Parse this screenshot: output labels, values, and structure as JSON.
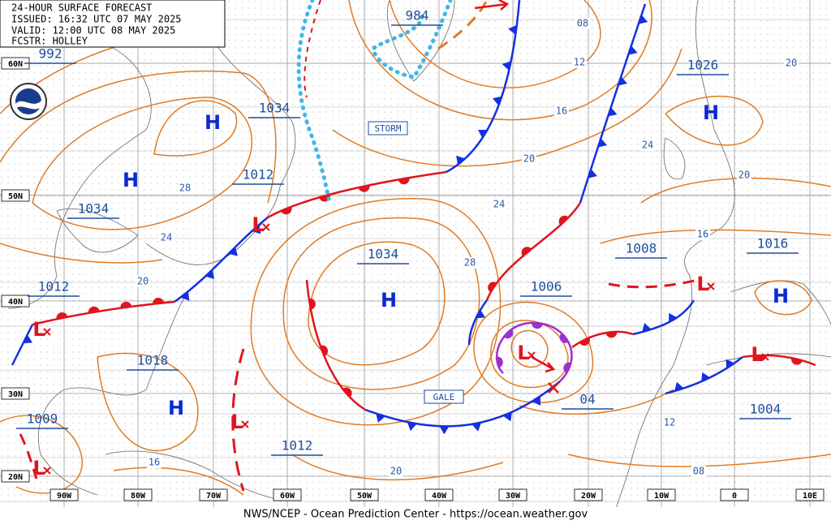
{
  "header": {
    "lines": [
      "24-HOUR SURFACE FORECAST",
      "ISSUED: 16:32 UTC 07 MAY 2025",
      "VALID: 12:00 UTC 08 MAY 2025",
      "FCSTR: HOLLEY"
    ]
  },
  "footer": "NWS/NCEP - Ocean Prediction Center - https://ocean.weather.gov",
  "latitude_labels": [
    "60N",
    "50N",
    "40N",
    "30N",
    "20N"
  ],
  "longitude_labels": [
    "90W",
    "80W",
    "70W",
    "60W",
    "50W",
    "40W",
    "30W",
    "20W",
    "10W",
    "0",
    "10E"
  ],
  "pressure_labels": [
    "992",
    "984",
    "1034",
    "1026",
    "1012",
    "1034",
    "1034",
    "1008",
    "1016",
    "1012",
    "1006",
    "1018",
    "04",
    "1009",
    "1004",
    "1012"
  ],
  "isobar_labels": [
    "08",
    "12",
    "16",
    "20",
    "24",
    "28",
    "20",
    "24",
    "20",
    "16",
    "28",
    "24",
    "20",
    "16",
    "20",
    "12",
    "08"
  ],
  "highs": [
    "H",
    "H",
    "H",
    "H",
    "H",
    "H"
  ],
  "lows": [
    "L",
    "L",
    "L",
    "L",
    "L",
    "L",
    "L"
  ],
  "tags": [
    "STORM",
    "GALE"
  ]
}
